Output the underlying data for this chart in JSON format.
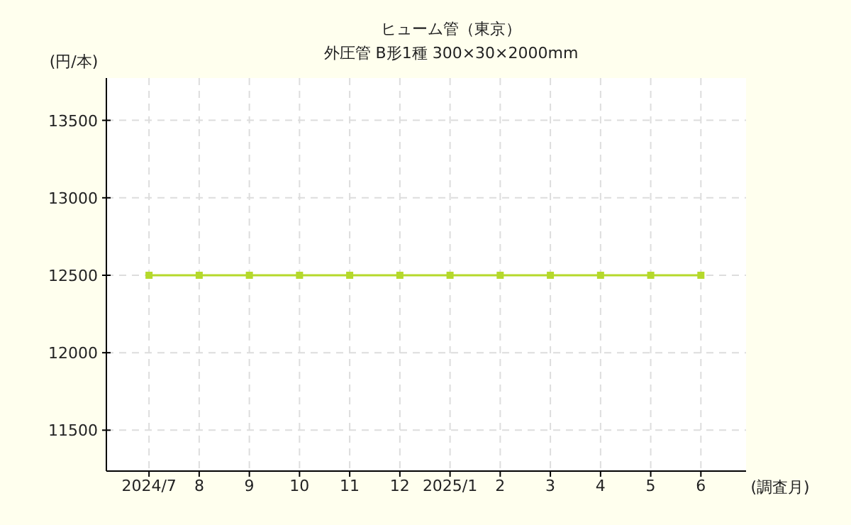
{
  "chart_data": {
    "type": "line",
    "title": "ヒューム管（東京）",
    "subtitle": "外圧管 B形1種 300×30×2000mm",
    "ylabel": "(円/本)",
    "xlabel": "(調査月)",
    "categories": [
      "2024/7",
      "8",
      "9",
      "10",
      "11",
      "12",
      "2025/1",
      "2",
      "3",
      "4",
      "5",
      "6"
    ],
    "series": [
      {
        "color": "#b5d92b",
        "values": [
          12500,
          12500,
          12500,
          12500,
          12500,
          12500,
          12500,
          12500,
          12500,
          12500,
          12500,
          12500
        ]
      }
    ],
    "ylim": [
      11236,
      13773
    ],
    "yticks": [
      11500,
      12000,
      12500,
      13000,
      13500
    ],
    "grid": true,
    "marker": "square",
    "line_style": "solid"
  }
}
